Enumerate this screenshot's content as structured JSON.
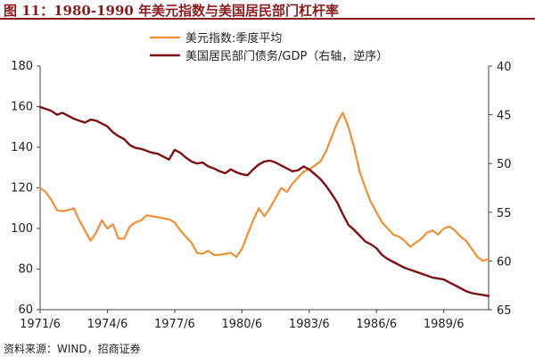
{
  "title": "图 11：1980-1990 年美元指数与美国居民部门杠杆率",
  "source": "资料来源：WIND，招商证券",
  "chart_data": {
    "type": "line",
    "x_start": "1971/6",
    "x_end": "1991/6",
    "x_tick_labels": [
      "1971/6",
      "1974/6",
      "1977/6",
      "1980/6",
      "1983/6",
      "1986/6",
      "1989/6"
    ],
    "y_left": {
      "range": [
        60,
        180
      ],
      "ticks": [
        60,
        80,
        100,
        120,
        140,
        160,
        180
      ]
    },
    "y_right": {
      "range": [
        40,
        65
      ],
      "reversed": true,
      "ticks": [
        40,
        45,
        50,
        55,
        60,
        65
      ]
    },
    "legend_position": "top-center",
    "grid": false,
    "series": [
      {
        "name": "美元指数:季度平均",
        "axis": "left",
        "color": "#e8913a",
        "x": [
          "1971/6",
          "1971/9",
          "1971/12",
          "1972/3",
          "1972/6",
          "1972/9",
          "1972/12",
          "1973/3",
          "1973/6",
          "1973/9",
          "1973/12",
          "1974/3",
          "1974/6",
          "1974/9",
          "1974/12",
          "1975/3",
          "1975/6",
          "1975/9",
          "1975/12",
          "1976/3",
          "1976/6",
          "1976/9",
          "1976/12",
          "1977/3",
          "1977/6",
          "1977/9",
          "1977/12",
          "1978/3",
          "1978/6",
          "1978/9",
          "1978/12",
          "1979/3",
          "1979/6",
          "1979/9",
          "1979/12",
          "1980/3",
          "1980/6",
          "1980/9",
          "1980/12",
          "1981/3",
          "1981/6",
          "1981/9",
          "1981/12",
          "1982/3",
          "1982/6",
          "1982/9",
          "1982/12",
          "1983/3",
          "1983/6",
          "1983/9",
          "1983/12",
          "1984/3",
          "1984/6",
          "1984/9",
          "1984/12",
          "1985/3",
          "1985/6",
          "1985/9",
          "1985/12",
          "1986/3",
          "1986/6",
          "1986/9",
          "1986/12",
          "1987/3",
          "1987/6",
          "1987/9",
          "1987/12",
          "1988/3",
          "1988/6",
          "1988/9",
          "1988/12",
          "1989/3",
          "1989/6",
          "1989/9",
          "1989/12",
          "1990/3",
          "1990/6",
          "1990/9",
          "1990/12",
          "1991/3",
          "1991/6"
        ],
        "values": [
          120,
          118,
          114,
          109,
          108.5,
          109,
          110,
          104,
          99,
          94,
          98,
          104,
          100,
          102,
          95,
          95,
          101,
          103,
          104,
          106.5,
          106,
          105.5,
          105,
          104.5,
          103,
          99,
          96,
          93,
          88,
          87.5,
          89,
          87,
          87,
          87.5,
          88,
          86,
          90,
          97,
          104,
          110,
          106,
          110,
          115,
          120,
          118,
          122,
          125,
          128,
          129,
          131,
          133,
          138,
          145,
          152,
          157,
          150,
          140,
          128,
          120,
          113,
          108,
          103,
          100,
          97,
          96,
          94,
          91,
          93,
          95,
          98,
          99,
          97,
          100,
          101,
          99,
          96,
          94,
          90,
          86,
          84,
          85
        ]
      },
      {
        "name": "美国居民部门债务/GDP（右轴，逆序）",
        "axis": "right",
        "color": "#7b1114",
        "x": [
          "1971/6",
          "1971/9",
          "1971/12",
          "1972/3",
          "1972/6",
          "1972/9",
          "1972/12",
          "1973/3",
          "1973/6",
          "1973/9",
          "1973/12",
          "1974/3",
          "1974/6",
          "1974/9",
          "1974/12",
          "1975/3",
          "1975/6",
          "1975/9",
          "1975/12",
          "1976/3",
          "1976/6",
          "1976/9",
          "1976/12",
          "1977/3",
          "1977/6",
          "1977/9",
          "1977/12",
          "1978/3",
          "1978/6",
          "1978/9",
          "1978/12",
          "1979/3",
          "1979/6",
          "1979/9",
          "1979/12",
          "1980/3",
          "1980/6",
          "1980/9",
          "1980/12",
          "1981/3",
          "1981/6",
          "1981/9",
          "1981/12",
          "1982/3",
          "1982/6",
          "1982/9",
          "1982/12",
          "1983/3",
          "1983/6",
          "1983/9",
          "1983/12",
          "1984/3",
          "1984/6",
          "1984/9",
          "1984/12",
          "1985/3",
          "1985/6",
          "1985/9",
          "1985/12",
          "1986/3",
          "1986/6",
          "1986/9",
          "1986/12",
          "1987/3",
          "1987/6",
          "1987/9",
          "1987/12",
          "1988/3",
          "1988/6",
          "1988/9",
          "1988/12",
          "1989/3",
          "1989/6",
          "1989/9",
          "1989/12",
          "1990/3",
          "1990/6",
          "1990/9",
          "1990/12",
          "1991/3",
          "1991/6"
        ],
        "values": [
          44.2,
          44.4,
          44.6,
          45,
          44.8,
          45.1,
          45.4,
          45.6,
          45.8,
          45.5,
          45.6,
          45.9,
          46.2,
          46.8,
          47.2,
          47.5,
          48.1,
          48.4,
          48.5,
          48.7,
          48.9,
          49,
          49.3,
          49.6,
          48.6,
          48.9,
          49.4,
          49.8,
          50,
          49.9,
          50.3,
          50.5,
          50.8,
          51,
          50.6,
          50.9,
          51.1,
          51.2,
          50.6,
          50.1,
          49.8,
          49.7,
          49.9,
          50.2,
          50.5,
          50.8,
          50.7,
          50.3,
          50.6,
          51.1,
          51.6,
          52.3,
          53.1,
          54,
          55.2,
          56.3,
          56.8,
          57.4,
          58,
          58.3,
          58.7,
          59.4,
          59.8,
          60.1,
          60.4,
          60.7,
          60.9,
          61.1,
          61.3,
          61.5,
          61.7,
          61.8,
          61.9,
          62.2,
          62.5,
          62.8,
          63.1,
          63.3,
          63.4,
          63.5,
          63.6
        ]
      }
    ]
  }
}
